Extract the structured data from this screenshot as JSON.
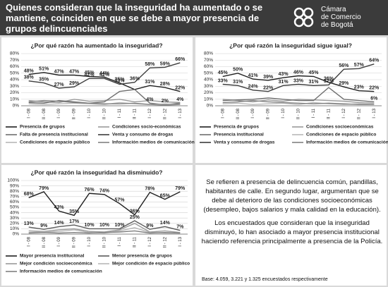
{
  "header": {
    "title": "Quienes consideran que la inseguridad ha aumentado o se mantiene, coinciden en que se debe a mayor presencia de grupos delincuenciales",
    "logo_lines": [
      "Cámara",
      "de Comercio",
      "de Bogotá"
    ]
  },
  "chart_data": [
    {
      "type": "line",
      "title": "¿Por qué razón ha aumentado la inseguridad?",
      "categories": [
        "I - 08",
        "II - 08",
        "I - 09",
        "II - 09",
        "I - 10",
        "II - 10",
        "I - 11",
        "II - 11",
        "I - 12",
        "II - 12",
        "I - 13"
      ],
      "ylim": [
        0,
        80
      ],
      "yticks": [
        {
          "value": 0,
          "label": "0%"
        },
        {
          "value": 10,
          "label": "10%"
        },
        {
          "value": 20,
          "label": "20%"
        },
        {
          "value": 30,
          "label": "30%"
        },
        {
          "value": 40,
          "label": "40%"
        },
        {
          "value": 50,
          "label": "50%"
        },
        {
          "value": 60,
          "label": "60%"
        },
        {
          "value": 70,
          "label": "70%"
        },
        {
          "value": 80,
          "label": "80%"
        }
      ],
      "grid": true,
      "series": [
        {
          "name": "Presencia de grupos",
          "color": "#1e1e1e",
          "values": [
            48,
            51,
            47,
            47,
            45,
            44,
            35,
            25,
            31,
            28,
            22
          ],
          "value_labels": [
            "48%",
            "51%",
            "47%",
            "47%",
            "45%",
            "44%",
            "35%",
            null,
            "31%",
            "28%",
            "22%"
          ]
        },
        {
          "name": "Condiciones socio-económicas",
          "color": "#9a9a9a",
          "values": [
            8,
            6,
            5,
            10,
            7,
            8,
            10,
            6,
            8,
            6,
            5
          ]
        },
        {
          "name": "Falta de presencia institucional",
          "color": "#6e6e6e",
          "values": [
            5,
            4,
            8,
            6,
            4,
            6,
            22,
            25,
            4,
            2,
            4
          ],
          "value_labels": [
            null,
            null,
            null,
            null,
            null,
            null,
            null,
            null,
            "4%",
            "2%",
            "4%"
          ]
        },
        {
          "name": "Venta y consumo de drogas",
          "color": "#3c3c3c",
          "values": [
            38,
            35,
            27,
            29,
            42,
            42,
            33,
            36,
            58,
            59,
            66
          ],
          "value_labels": [
            "38%",
            "35%",
            "27%",
            "29%",
            "42%",
            "42%",
            "33%",
            "36%",
            "58%",
            "59%",
            "66%"
          ]
        },
        {
          "name": "Condiciones de espacio público",
          "color": "#b8b8b8",
          "values": [
            3,
            2,
            3,
            4,
            3,
            2,
            5,
            3,
            2,
            3,
            2
          ]
        },
        {
          "name": "Información medios de comunicación",
          "color": "#808080",
          "values": [
            6,
            8,
            7,
            5,
            4,
            3,
            3,
            4,
            2,
            1,
            2
          ]
        }
      ]
    },
    {
      "type": "line",
      "title": "¿Por qué razón la inseguridad sigue igual?",
      "categories": [
        "I - 08",
        "II - 08",
        "I - 09",
        "II - 09",
        "I - 10",
        "II - 10",
        "I - 11",
        "II - 11",
        "I - 12",
        "II - 12",
        "I - 13"
      ],
      "ylim": [
        0,
        80
      ],
      "yticks": [
        {
          "value": 0,
          "label": "0%"
        },
        {
          "value": 10,
          "label": "10%"
        },
        {
          "value": 20,
          "label": "20%"
        },
        {
          "value": 30,
          "label": "30%"
        },
        {
          "value": 40,
          "label": "40%"
        },
        {
          "value": 50,
          "label": "50%"
        },
        {
          "value": 60,
          "label": "60%"
        },
        {
          "value": 70,
          "label": "70%"
        },
        {
          "value": 80,
          "label": "80%"
        }
      ],
      "grid": true,
      "series": [
        {
          "name": "Presencia de grupos",
          "color": "#1e1e1e",
          "values": [
            45,
            50,
            41,
            39,
            43,
            46,
            45,
            36,
            29,
            23,
            22
          ],
          "value_labels": [
            "45%",
            "50%",
            "41%",
            "39%",
            "43%",
            "46%",
            "45%",
            "36%",
            "29%",
            "23%",
            "22%"
          ]
        },
        {
          "name": "Condiciones socioeconómicas",
          "color": "#9a9a9a",
          "values": [
            10,
            8,
            6,
            9,
            7,
            10,
            9,
            8,
            7,
            5,
            4
          ]
        },
        {
          "name": "Presencia institucional",
          "color": "#6e6e6e",
          "values": [
            8,
            9,
            10,
            12,
            10,
            8,
            8,
            28,
            10,
            8,
            6
          ],
          "value_labels": [
            null,
            null,
            null,
            null,
            null,
            null,
            null,
            null,
            null,
            null,
            "6%"
          ]
        },
        {
          "name": "Condiciones de espacio público",
          "color": "#b8b8b8",
          "values": [
            3,
            4,
            2,
            3,
            4,
            2,
            5,
            3,
            2,
            3,
            2
          ]
        },
        {
          "name": "Venta y consumo de drogas",
          "color": "#3c3c3c",
          "values": [
            33,
            31,
            24,
            22,
            31,
            33,
            31,
            32,
            56,
            57,
            64
          ],
          "value_labels": [
            "33%",
            "31%",
            "24%",
            "22%",
            "31%",
            "33%",
            "31%",
            "32%",
            "56%",
            "57%",
            "64%"
          ]
        },
        {
          "name": "Información medios de comunicación",
          "color": "#808080",
          "values": [
            5,
            6,
            8,
            6,
            5,
            4,
            3,
            4,
            3,
            2,
            2
          ]
        }
      ]
    },
    {
      "type": "line",
      "title": "¿Por qué razón la inseguridad ha disminuido?",
      "categories": [
        "I - 08",
        "II - 08",
        "I - 09",
        "II - 09",
        "I - 10",
        "II - 10",
        "I - 11",
        "II - 11",
        "I - 12",
        "II - 12",
        "I - 13"
      ],
      "ylim": [
        0,
        100
      ],
      "yticks": [
        {
          "value": 0,
          "label": "0%"
        },
        {
          "value": 10,
          "label": "10%"
        },
        {
          "value": 20,
          "label": "20%"
        },
        {
          "value": 30,
          "label": "30%"
        },
        {
          "value": 40,
          "label": "40%"
        },
        {
          "value": 50,
          "label": "50%"
        },
        {
          "value": 60,
          "label": "60%"
        },
        {
          "value": 70,
          "label": "70%"
        },
        {
          "value": 80,
          "label": "80%"
        },
        {
          "value": 90,
          "label": "90%"
        },
        {
          "value": 100,
          "label": "100%"
        }
      ],
      "grid": true,
      "series": [
        {
          "name": "Mayor presencia institucional",
          "color": "#1e1e1e",
          "values": [
            68,
            79,
            43,
            35,
            76,
            74,
            57,
            36,
            78,
            65,
            79
          ],
          "value_labels": [
            "68%",
            "79%",
            "43%",
            "35%",
            "76%",
            "74%",
            "57%",
            "36%",
            "78%",
            "65%",
            "79%"
          ]
        },
        {
          "name": "Menor presencia de grupos",
          "color": "#5a5a5a",
          "values": [
            13,
            9,
            14,
            17,
            10,
            10,
            10,
            25,
            9,
            14,
            7
          ],
          "value_labels": [
            "13%",
            "9%",
            "14%",
            "17%",
            "10%",
            "10%",
            "10%",
            "25%",
            "9%",
            "14%",
            "7%"
          ]
        },
        {
          "name": "Mejor condición socioeconómica",
          "color": "#9a9a9a",
          "values": [
            6,
            5,
            8,
            10,
            5,
            4,
            8,
            20,
            4,
            6,
            3
          ]
        },
        {
          "name": "Mejor condición de espacio público",
          "color": "#b8b8b8",
          "values": [
            3,
            4,
            5,
            8,
            3,
            2,
            6,
            12,
            3,
            2,
            2
          ]
        },
        {
          "name": "Información medios de comunicación",
          "color": "#808080",
          "values": [
            2,
            3,
            2,
            3,
            2,
            3,
            4,
            6,
            2,
            3,
            2
          ]
        }
      ]
    }
  ],
  "text": {
    "paragraphs": [
      "Se refieren a presencia de delincuencia común, pandillas, habitantes de calle. En segundo lugar, argumentan que se debe al deterioro de las condiciones socioeconómicas (desempleo, bajos salarios y mala calidad en la educación).",
      "Los encuestados que consideran que la inseguridad disminuyó, lo han asociado a mayor presencia institucional haciendo referencia principalmente a presencia de la Policía."
    ],
    "note": "Base: 4.059, 3.221 y 1.325 encuestados respectivamente"
  }
}
